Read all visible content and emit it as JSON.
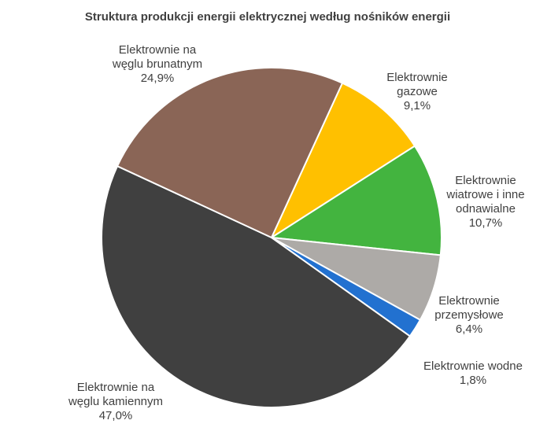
{
  "chart_data": {
    "type": "pie",
    "title": "Struktura produkcji energii elektrycznej według nośników energii",
    "start_angle_deg": -65.4,
    "direction": "clockwise",
    "slices": [
      {
        "label_lines": [
          "Elektrownie",
          "gazowe"
        ],
        "value": 9.1,
        "value_label": "9,1%",
        "color": "#FFC000"
      },
      {
        "label_lines": [
          "Elektrownie",
          "wiatrowe i inne",
          "odnawialne"
        ],
        "value": 10.7,
        "value_label": "10,7%",
        "color": "#43B43F"
      },
      {
        "label_lines": [
          "Elektrownie",
          "przemysłowe"
        ],
        "value": 6.4,
        "value_label": "6,4%",
        "color": "#ADAAA7"
      },
      {
        "label_lines": [
          "Elektrownie wodne"
        ],
        "value": 1.8,
        "value_label": "1,8%",
        "color": "#2271D0"
      },
      {
        "label_lines": [
          "Elektrownie na",
          "węglu kamiennym"
        ],
        "value": 47.0,
        "value_label": "47,0%",
        "color": "#404040"
      },
      {
        "label_lines": [
          "Elektrownie na",
          "węglu brunatnym"
        ],
        "value": 24.9,
        "value_label": "24,9%",
        "color": "#8A6556"
      }
    ]
  }
}
